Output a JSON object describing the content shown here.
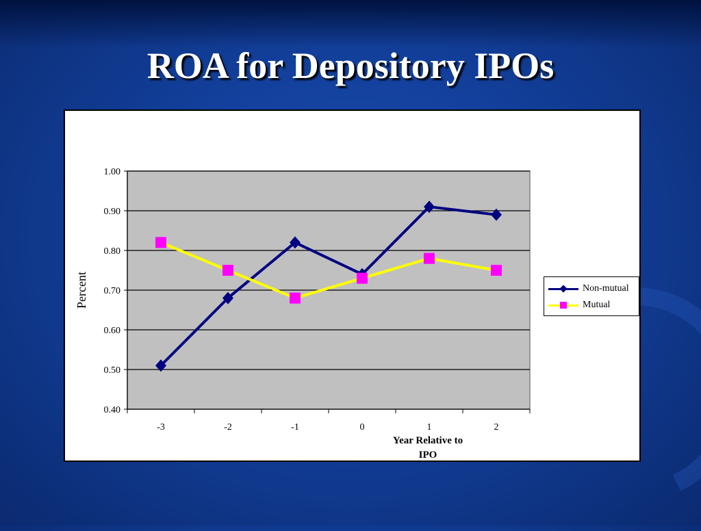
{
  "slide": {
    "title": "ROA for Depository IPOs"
  },
  "chart_data": {
    "type": "line",
    "categories": [
      "-3",
      "-2",
      "-1",
      "0",
      "1",
      "2"
    ],
    "series": [
      {
        "name": "Non-mutual",
        "values": [
          0.51,
          0.68,
          0.82,
          0.74,
          0.91,
          0.89
        ],
        "color": "#000080",
        "marker": "diamond"
      },
      {
        "name": "Mutual",
        "values": [
          0.82,
          0.75,
          0.68,
          0.73,
          0.78,
          0.75
        ],
        "color": "#ffff00",
        "marker_color": "#ff00ff",
        "marker": "square"
      }
    ],
    "title": "",
    "xlabel": "Year Relative to IPO",
    "ylabel": "Percent",
    "ylim": [
      0.4,
      1.0
    ],
    "yticks": [
      "0.40",
      "0.50",
      "0.60",
      "0.70",
      "0.80",
      "0.90",
      "1.00"
    ],
    "grid": true,
    "plot_background": "#c0c0c0",
    "legend_position": "right"
  }
}
